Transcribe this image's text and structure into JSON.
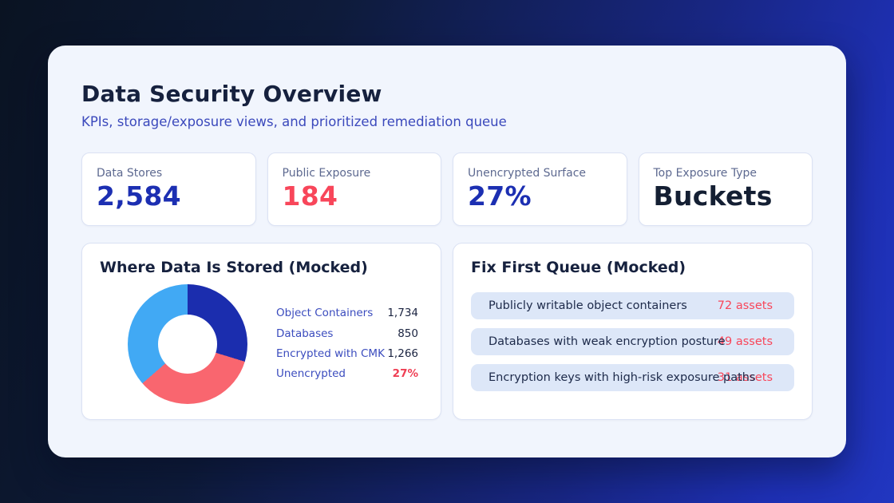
{
  "page": {
    "title": "Data Security Overview",
    "subtitle": "KPIs, storage/exposure views, and prioritized remediation queue"
  },
  "kpis": [
    {
      "label": "Data Stores",
      "value": "2,584"
    },
    {
      "label": "Public Exposure",
      "value": "184"
    },
    {
      "label": "Unencrypted Surface",
      "value": "27%"
    },
    {
      "label": "Top Exposure Type",
      "value": "Buckets"
    }
  ],
  "storage_panel": {
    "title": "Where Data Is Stored (Mocked)",
    "legend": [
      {
        "label": "Object Containers",
        "value": "1,734"
      },
      {
        "label": "Databases",
        "value": "850"
      },
      {
        "label": "Encrypted with CMK",
        "value": "1,266"
      },
      {
        "label": "Unencrypted",
        "value": "27%"
      }
    ]
  },
  "chart_data": {
    "type": "pie",
    "donut": true,
    "title": "Where Data Is Stored (Mocked)",
    "hole_ratio": 0.49,
    "start_angle": "top",
    "direction": "clockwise",
    "segments": [
      {
        "name": "navy-segment",
        "hex": "#1b2dae",
        "degrees": 107,
        "percent": 29.7
      },
      {
        "name": "coral-segment",
        "hex": "#f9666f",
        "degrees": 122,
        "percent": 33.9
      },
      {
        "name": "sky-segment",
        "hex": "#41a9f4",
        "degrees": 131,
        "percent": 36.4
      }
    ],
    "legend_rows": [
      {
        "label": "Object Containers",
        "value": "1,734"
      },
      {
        "label": "Databases",
        "value": "850"
      },
      {
        "label": "Encrypted with CMK",
        "value": "1,266"
      },
      {
        "label": "Unencrypted",
        "value": "27%"
      }
    ]
  },
  "queue_panel": {
    "title": "Fix First Queue (Mocked)",
    "items": [
      {
        "label": "Publicly writable object containers",
        "value": "72 assets"
      },
      {
        "label": "Databases with weak encryption posture",
        "value": "49 assets"
      },
      {
        "label": "Encryption keys with high-risk exposure paths",
        "value": "31 assets"
      }
    ]
  },
  "colors": {
    "background_gradient_start": "#0a1322",
    "background_gradient_end": "#2136c0",
    "card_background": "#f1f5fd",
    "panel_background": "#ffffff",
    "panel_border": "#dbe2f4",
    "title_navy": "#16213e",
    "subtitle_blue": "#3b49bc",
    "kpi_label_slate": "#5d6990",
    "accent_blue": "#1c2fb2",
    "alert_red": "#f8465a",
    "legend_label_blue": "#3b4cbe",
    "legend_value_navy": "#1a2340",
    "legend_alert_red": "#ef3e53",
    "queue_row_background": "#dde7f8",
    "queue_label_navy": "#1d2a4a"
  }
}
